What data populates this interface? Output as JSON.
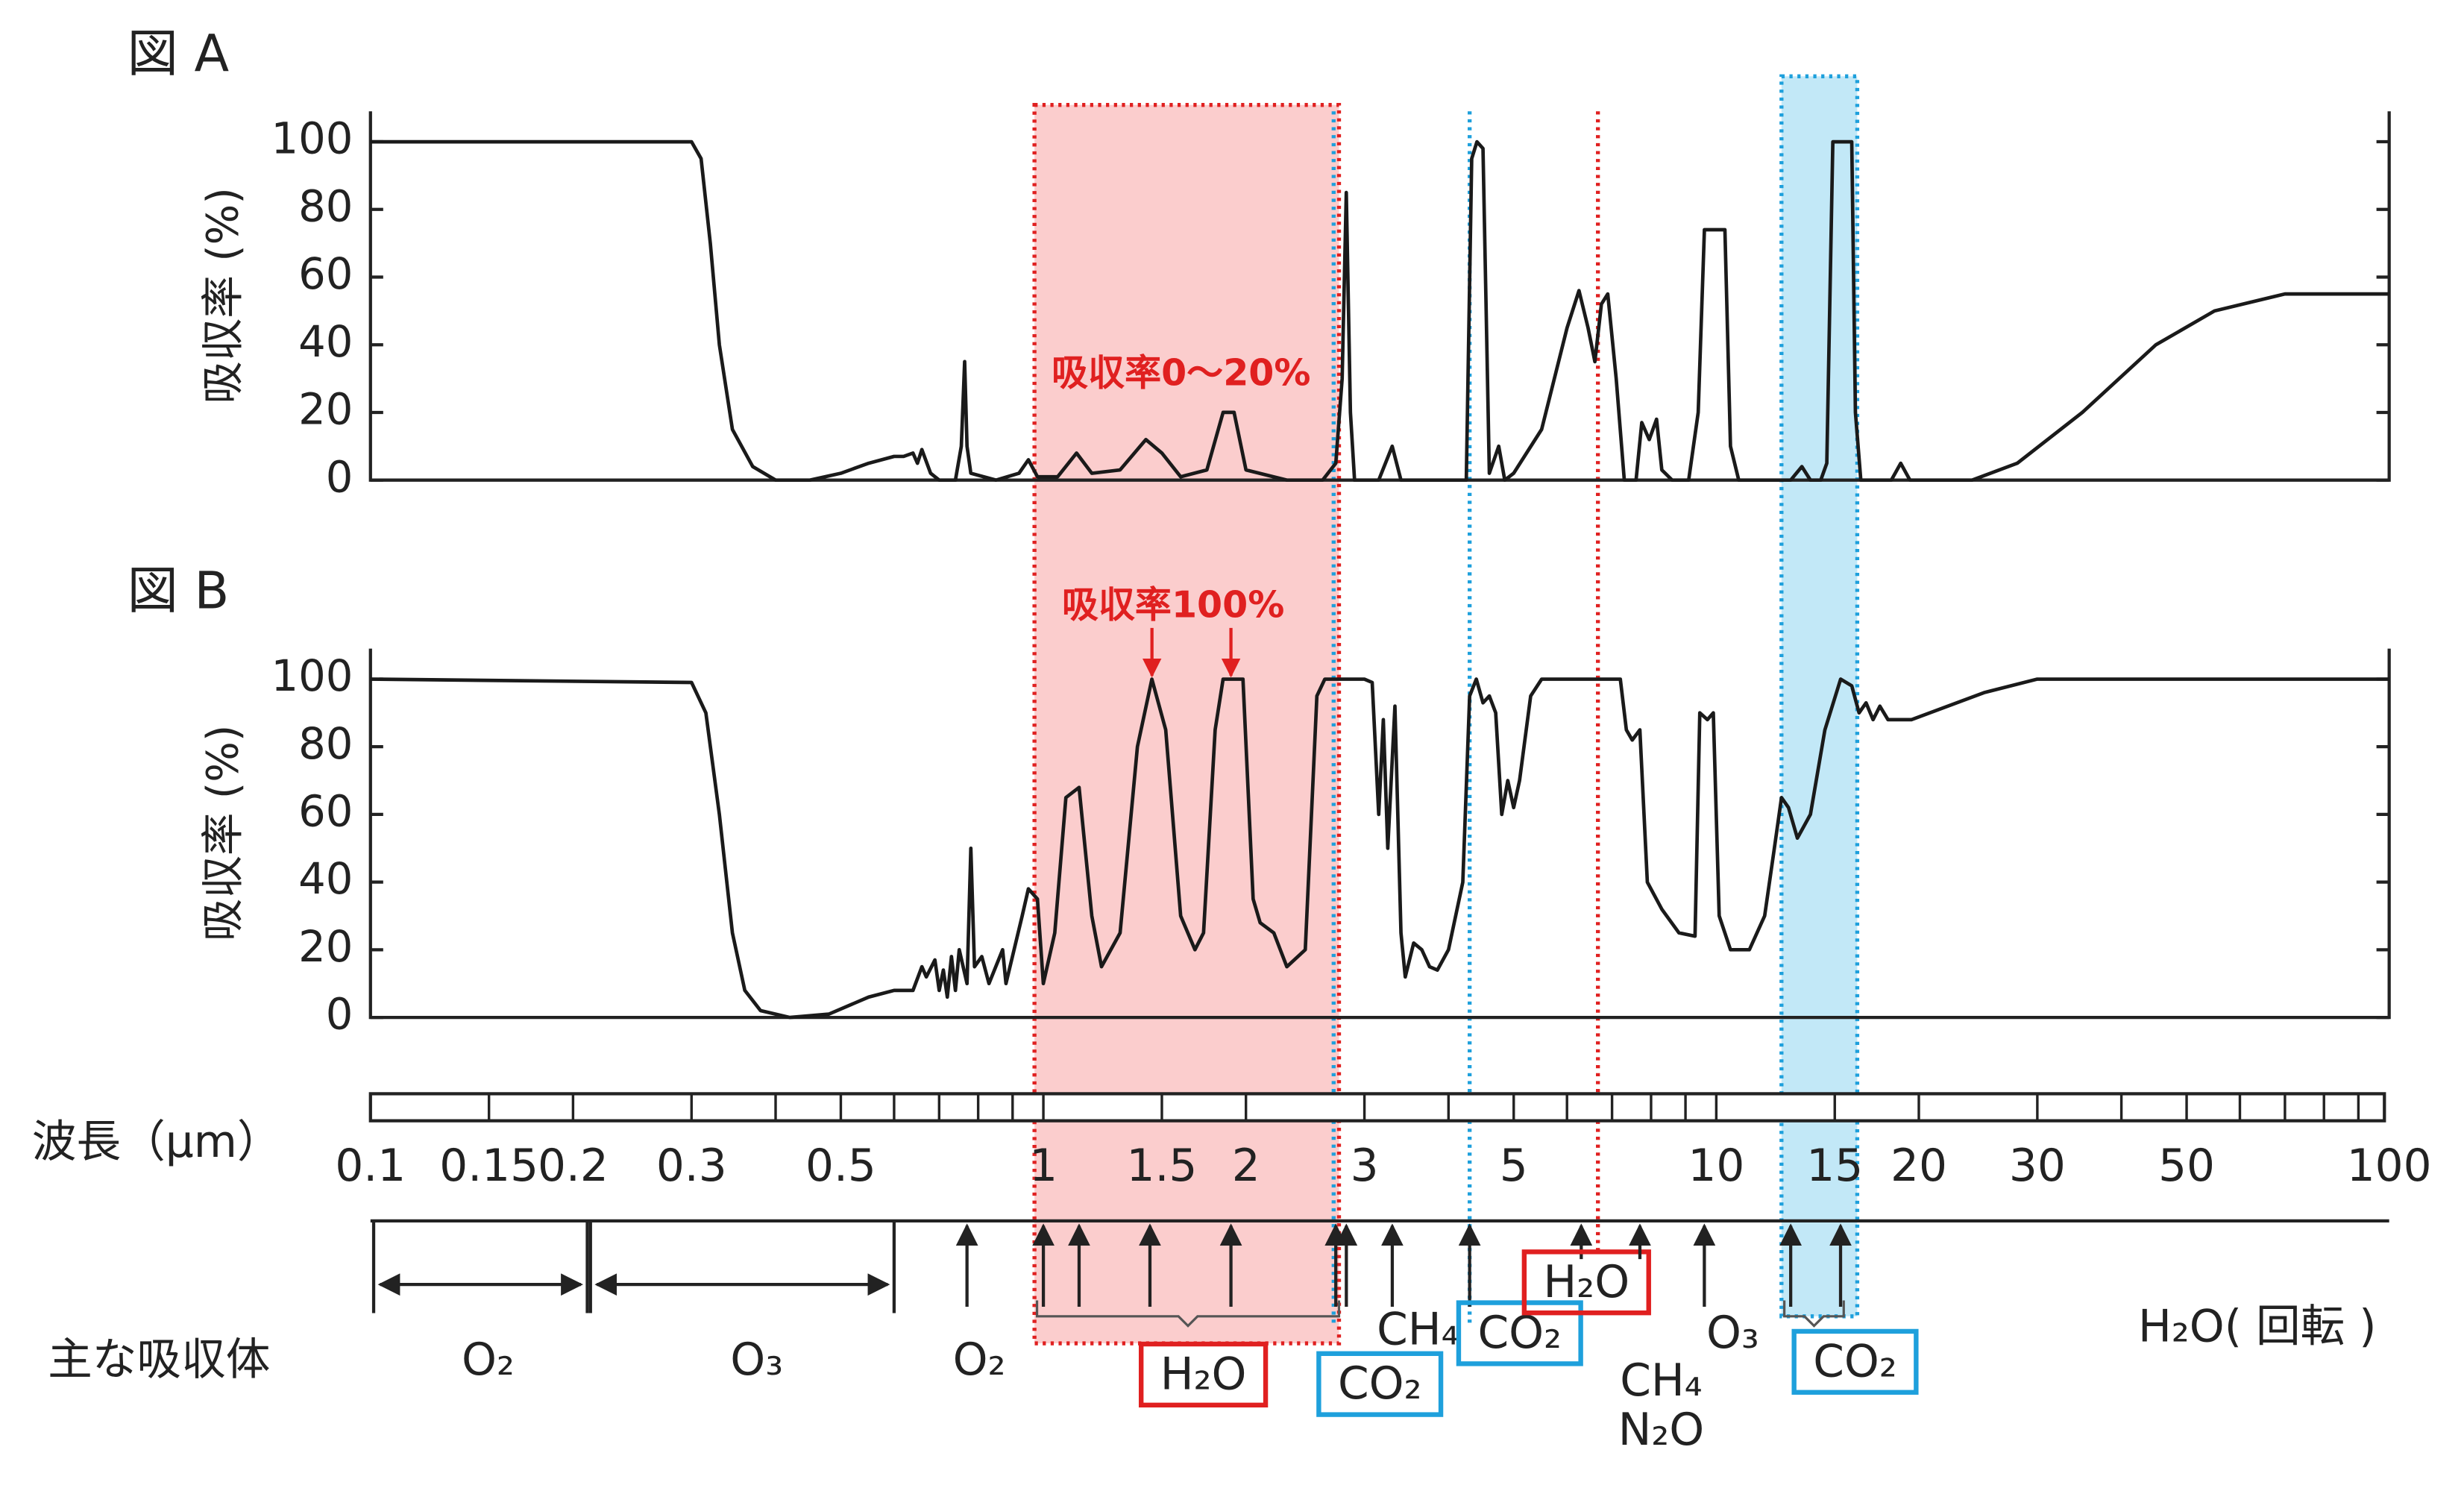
{
  "chart_data": [
    {
      "type": "line",
      "title": "図 A",
      "y_label": "吸収率 (%)",
      "color": "#1a1a1a",
      "log_x": true,
      "xlim": [
        0.1,
        100
      ],
      "ylim": [
        0,
        109
      ],
      "yticks": [
        0,
        20,
        40,
        60,
        80,
        100
      ],
      "x": [
        0.1,
        0.3,
        0.31,
        0.32,
        0.33,
        0.345,
        0.37,
        0.4,
        0.45,
        0.5,
        0.55,
        0.6,
        0.62,
        0.64,
        0.65,
        0.66,
        0.68,
        0.7,
        0.74,
        0.755,
        0.764,
        0.77,
        0.78,
        0.85,
        0.92,
        0.95,
        0.98,
        1.05,
        1.12,
        1.18,
        1.3,
        1.42,
        1.5,
        1.6,
        1.75,
        1.85,
        1.92,
        2.0,
        2.3,
        2.6,
        2.72,
        2.78,
        2.82,
        2.86,
        2.9,
        3.15,
        3.3,
        3.4,
        4.1,
        4.25,
        4.33,
        4.41,
        4.5,
        4.6,
        4.75,
        4.85,
        5.0,
        5.5,
        6.0,
        6.25,
        6.45,
        6.6,
        6.75,
        6.9,
        7.1,
        7.3,
        7.6,
        7.75,
        7.95,
        8.15,
        8.3,
        8.6,
        9.1,
        9.4,
        9.6,
        10.3,
        10.5,
        10.8,
        12.9,
        13.4,
        13.8,
        14.3,
        14.6,
        14.9,
        15.3,
        15.9,
        16.1,
        16.4,
        18.2,
        18.8,
        19.4,
        24,
        28,
        35,
        45,
        55,
        70,
        100
      ],
      "values": [
        100,
        100,
        95,
        70,
        40,
        15,
        4,
        0,
        0,
        2,
        5,
        7,
        7,
        8,
        5,
        9,
        2,
        0,
        0,
        10,
        35,
        10,
        2,
        0,
        2,
        6,
        1,
        1,
        8,
        2,
        3,
        12,
        8,
        1,
        3,
        20,
        20,
        3,
        0,
        0,
        5,
        30,
        85,
        20,
        0,
        0,
        10,
        0,
        0,
        0,
        95,
        100,
        98,
        2,
        10,
        0,
        2,
        15,
        45,
        56,
        45,
        35,
        52,
        55,
        30,
        0,
        0,
        17,
        12,
        18,
        3,
        0,
        0,
        20,
        74,
        74,
        10,
        0,
        0,
        4,
        0,
        0,
        5,
        100,
        100,
        100,
        20,
        0,
        0,
        5,
        0,
        0,
        5,
        20,
        40,
        50,
        55,
        55
      ]
    },
    {
      "type": "line",
      "title": "図 B",
      "y_label": "吸収率 (%)",
      "color": "#1a1a1a",
      "log_x": true,
      "xlim": [
        0.1,
        100
      ],
      "ylim": [
        0,
        109
      ],
      "yticks": [
        0,
        20,
        40,
        60,
        80,
        100
      ],
      "x": [
        0.1,
        0.3,
        0.315,
        0.33,
        0.345,
        0.36,
        0.38,
        0.42,
        0.48,
        0.55,
        0.6,
        0.64,
        0.66,
        0.67,
        0.69,
        0.7,
        0.71,
        0.72,
        0.73,
        0.74,
        0.75,
        0.77,
        0.78,
        0.79,
        0.81,
        0.83,
        0.87,
        0.88,
        0.93,
        0.95,
        0.98,
        1.0,
        1.04,
        1.08,
        1.13,
        1.18,
        1.22,
        1.3,
        1.38,
        1.45,
        1.52,
        1.6,
        1.68,
        1.73,
        1.8,
        1.85,
        1.98,
        2.05,
        2.1,
        2.2,
        2.3,
        2.45,
        2.55,
        2.62,
        3.0,
        3.08,
        3.15,
        3.2,
        3.25,
        3.33,
        3.4,
        3.45,
        3.55,
        3.65,
        3.75,
        3.85,
        4.0,
        4.2,
        4.3,
        4.4,
        4.5,
        4.6,
        4.7,
        4.8,
        4.9,
        5.0,
        5.1,
        5.3,
        5.5,
        7.2,
        7.35,
        7.5,
        7.7,
        7.9,
        8.3,
        8.8,
        9.3,
        9.45,
        9.7,
        9.9,
        10.1,
        10.5,
        11.2,
        11.8,
        12.2,
        12.5,
        12.8,
        13.2,
        13.8,
        14.5,
        15.3,
        15.9,
        16.3,
        16.7,
        17.1,
        17.5,
        18,
        19.5,
        25,
        30,
        100
      ],
      "values": [
        100,
        99,
        90,
        60,
        25,
        8,
        2,
        0,
        1,
        6,
        8,
        8,
        15,
        12,
        17,
        8,
        14,
        6,
        18,
        8,
        20,
        10,
        50,
        15,
        18,
        10,
        20,
        10,
        30,
        38,
        35,
        10,
        25,
        65,
        68,
        30,
        15,
        25,
        80,
        100,
        85,
        30,
        20,
        25,
        85,
        100,
        100,
        35,
        28,
        25,
        15,
        20,
        95,
        100,
        100,
        99,
        60,
        88,
        50,
        92,
        25,
        12,
        22,
        20,
        15,
        14,
        20,
        40,
        95,
        100,
        93,
        95,
        90,
        60,
        70,
        62,
        70,
        95,
        100,
        100,
        85,
        82,
        85,
        40,
        32,
        25,
        24,
        90,
        88,
        90,
        30,
        20,
        20,
        30,
        50,
        65,
        62,
        53,
        60,
        85,
        100,
        98,
        90,
        93,
        88,
        92,
        88,
        88,
        96,
        100,
        100
      ]
    }
  ],
  "annotations": [
    {
      "text": "吸収率0～20%",
      "color": "#e02020"
    },
    {
      "text": "吸収率100%",
      "color": "#e02020",
      "arrow_x": [
        1.45,
        1.9
      ]
    }
  ],
  "highlights": [
    {
      "x": [
        0.97,
        2.75
      ],
      "color": "#f9bcbc",
      "border": "#e02020"
    },
    {
      "x": [
        12.5,
        16.2
      ],
      "color": "#aee0f4",
      "border": "#1ea0dc"
    }
  ],
  "dotted_lines": [
    {
      "x": 2.7,
      "color": "#1ea0dc"
    },
    {
      "x": 4.3,
      "color": "#1ea0dc"
    },
    {
      "x": 6.67,
      "color": "#e02020"
    }
  ],
  "wavelength_axis": {
    "label": "波長（μm）",
    "log_x": true,
    "xlim": [
      0.1,
      100
    ],
    "xticks": [
      0.1,
      0.15,
      0.2,
      0.3,
      0.5,
      1,
      1.5,
      2,
      3,
      5,
      10,
      15,
      20,
      30,
      50,
      100
    ],
    "bar_ticks": [
      0.15,
      0.2,
      0.3,
      0.4,
      0.5,
      0.6,
      0.7,
      0.8,
      0.9,
      1,
      1.5,
      2,
      3,
      4,
      5,
      6,
      7,
      8,
      9,
      10,
      15,
      20,
      30,
      40,
      50,
      60,
      70,
      80,
      90
    ]
  },
  "absorbers": {
    "title": "主な吸収体",
    "items": [
      {
        "labels": [
          "O₂"
        ],
        "range": [
          0.1,
          0.21
        ]
      },
      {
        "labels": [
          "O₃"
        ],
        "range": [
          0.21,
          0.6
        ]
      },
      {
        "labels": [
          "O₂"
        ],
        "arrows": [
          0.77
        ]
      },
      {
        "labels": [
          "H₂O"
        ],
        "arrows": [
          1.0,
          1.13,
          1.44,
          1.9,
          2.72
        ],
        "box_color": "#e02020"
      },
      {
        "labels": [
          "CO₂"
        ],
        "arrows": [
          2.82
        ],
        "box_color": "#1ea0dc"
      },
      {
        "labels": [
          "CH₄"
        ],
        "arrows": [
          3.3
        ]
      },
      {
        "labels": [
          "CO₂"
        ],
        "arrows": [
          4.3
        ],
        "box_color": "#1ea0dc"
      },
      {
        "labels": [
          "H₂O"
        ],
        "arrows": [
          6.3
        ],
        "box_color": "#e02020"
      },
      {
        "labels": [
          "CH₄",
          "N₂O"
        ],
        "arrows": [
          7.7
        ]
      },
      {
        "labels": [
          "O₃"
        ],
        "arrows": [
          9.6
        ]
      },
      {
        "labels": [
          "CO₂"
        ],
        "arrows": [
          12.9,
          15.3
        ],
        "box_color": "#1ea0dc"
      },
      {
        "labels": [
          "H₂O( 回転 )"
        ]
      }
    ]
  }
}
